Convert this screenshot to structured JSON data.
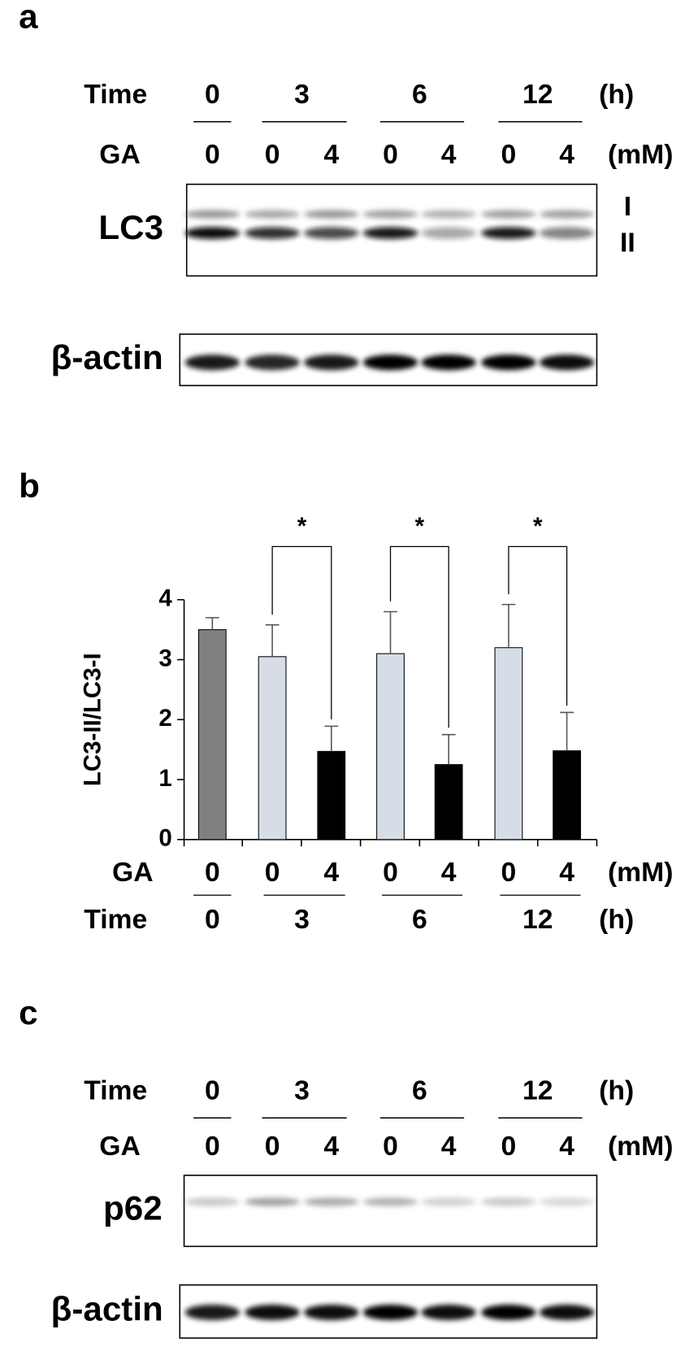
{
  "panel_a": {
    "label": "a",
    "time": {
      "title": "Time",
      "values": [
        "0",
        "3",
        "6",
        "12"
      ],
      "unit": "(h)"
    },
    "ga": {
      "title": "GA",
      "values": [
        "0",
        "0",
        "4",
        "0",
        "4",
        "0",
        "4"
      ],
      "unit": "(mM)"
    },
    "blots": [
      {
        "name": "LC3",
        "bands": [
          "I",
          "II"
        ]
      },
      {
        "name": "β-actin"
      }
    ]
  },
  "chart_data": {
    "type": "bar",
    "label": "b",
    "y_label": "LC3-II/LC3-I",
    "ylim": [
      0,
      4
    ],
    "yticks": [
      0,
      1,
      2,
      3,
      4
    ],
    "ga_title": "GA",
    "ga_unit": "(mM)",
    "time_title": "Time",
    "time_unit": "(h)",
    "groups": [
      {
        "time": "0",
        "bars": [
          {
            "ga": "0",
            "value": 3.5,
            "error": 0.2,
            "color": "#7f7f7f"
          }
        ]
      },
      {
        "time": "3",
        "significance": "*",
        "bars": [
          {
            "ga": "0",
            "value": 3.05,
            "error": 0.53,
            "color": "#d6dde6"
          },
          {
            "ga": "4",
            "value": 1.47,
            "error": 0.42,
            "color": "#000000"
          }
        ]
      },
      {
        "time": "6",
        "significance": "*",
        "bars": [
          {
            "ga": "0",
            "value": 3.1,
            "error": 0.7,
            "color": "#d6dde6"
          },
          {
            "ga": "4",
            "value": 1.25,
            "error": 0.5,
            "color": "#000000"
          }
        ]
      },
      {
        "time": "12",
        "significance": "*",
        "bars": [
          {
            "ga": "0",
            "value": 3.2,
            "error": 0.72,
            "color": "#d6dde6"
          },
          {
            "ga": "4",
            "value": 1.48,
            "error": 0.64,
            "color": "#000000"
          }
        ]
      }
    ]
  },
  "panel_c": {
    "label": "c",
    "time": {
      "title": "Time",
      "values": [
        "0",
        "3",
        "6",
        "12"
      ],
      "unit": "(h)"
    },
    "ga": {
      "title": "GA",
      "values": [
        "0",
        "0",
        "4",
        "0",
        "4",
        "0",
        "4"
      ],
      "unit": "(mM)"
    },
    "blots": [
      {
        "name": "p62"
      },
      {
        "name": "β-actin"
      }
    ]
  }
}
